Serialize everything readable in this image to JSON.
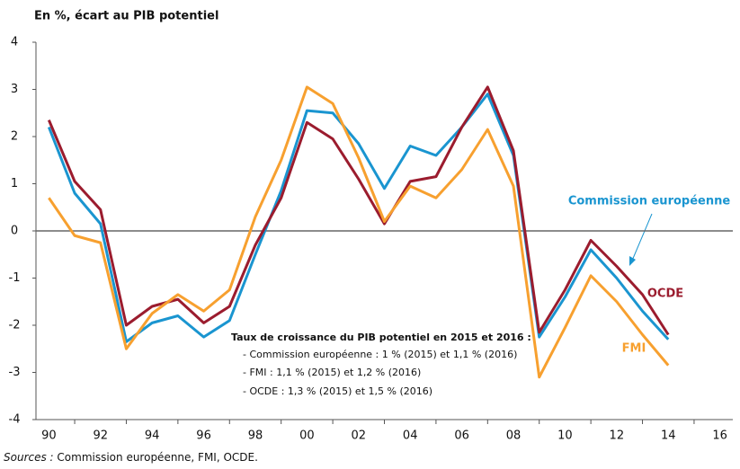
{
  "chart_data": {
    "type": "line",
    "title": "En %, écart au PIB potentiel",
    "categories": [
      "90",
      null,
      "92",
      null,
      "94",
      null,
      "96",
      null,
      "98",
      null,
      "00",
      null,
      "02",
      null,
      "04",
      null,
      "06",
      null,
      "08",
      null,
      "10",
      null,
      "12",
      null,
      "14",
      null,
      "16"
    ],
    "series": [
      {
        "name": "Commission européenne",
        "color": "#1a95d0",
        "values": [
          2.2,
          0.8,
          0.15,
          -2.35,
          -1.95,
          -1.8,
          -2.25,
          -1.9,
          -0.5,
          0.85,
          2.55,
          2.5,
          1.85,
          0.9,
          1.8,
          1.6,
          2.2,
          2.9,
          1.6,
          -2.25,
          -1.4,
          -0.4,
          -1.0,
          -1.7,
          -2.3,
          null,
          null
        ]
      },
      {
        "name": "OCDE",
        "color": "#9b1c2e",
        "values": [
          2.35,
          1.05,
          0.45,
          -2.0,
          -1.6,
          -1.45,
          -1.95,
          -1.6,
          -0.3,
          0.7,
          2.3,
          1.95,
          1.1,
          0.15,
          1.05,
          1.15,
          2.2,
          3.05,
          1.7,
          -2.15,
          -1.25,
          -0.2,
          -0.75,
          -1.35,
          -2.2,
          null,
          null
        ]
      },
      {
        "name": "FMI",
        "color": "#f7a02f",
        "values": [
          0.7,
          -0.1,
          -0.25,
          -2.5,
          -1.75,
          -1.35,
          -1.7,
          -1.25,
          0.3,
          1.5,
          3.05,
          2.7,
          1.55,
          0.2,
          0.95,
          0.7,
          1.3,
          2.15,
          0.95,
          -3.1,
          -2.05,
          -0.95,
          -1.5,
          -2.2,
          -2.85,
          null,
          null
        ]
      }
    ],
    "ylim": [
      -4,
      4
    ],
    "yticks": [
      -4,
      -3,
      -2,
      -1,
      0,
      1,
      2,
      3,
      4
    ],
    "annotation": {
      "title": "Taux de croissance du PIB potentiel en 2015 et 2016 :",
      "lines": [
        "- Commission européenne : 1 % (2015) et 1,1 % (2016)",
        "- FMI : 1,1 % (2015) et  1,2 % (2016)",
        "- OCDE : 1,3 % (2015) et 1,5 % (2016)"
      ]
    },
    "source": {
      "label": "Sources :",
      "text": " Commission européenne, FMI, OCDE."
    }
  }
}
